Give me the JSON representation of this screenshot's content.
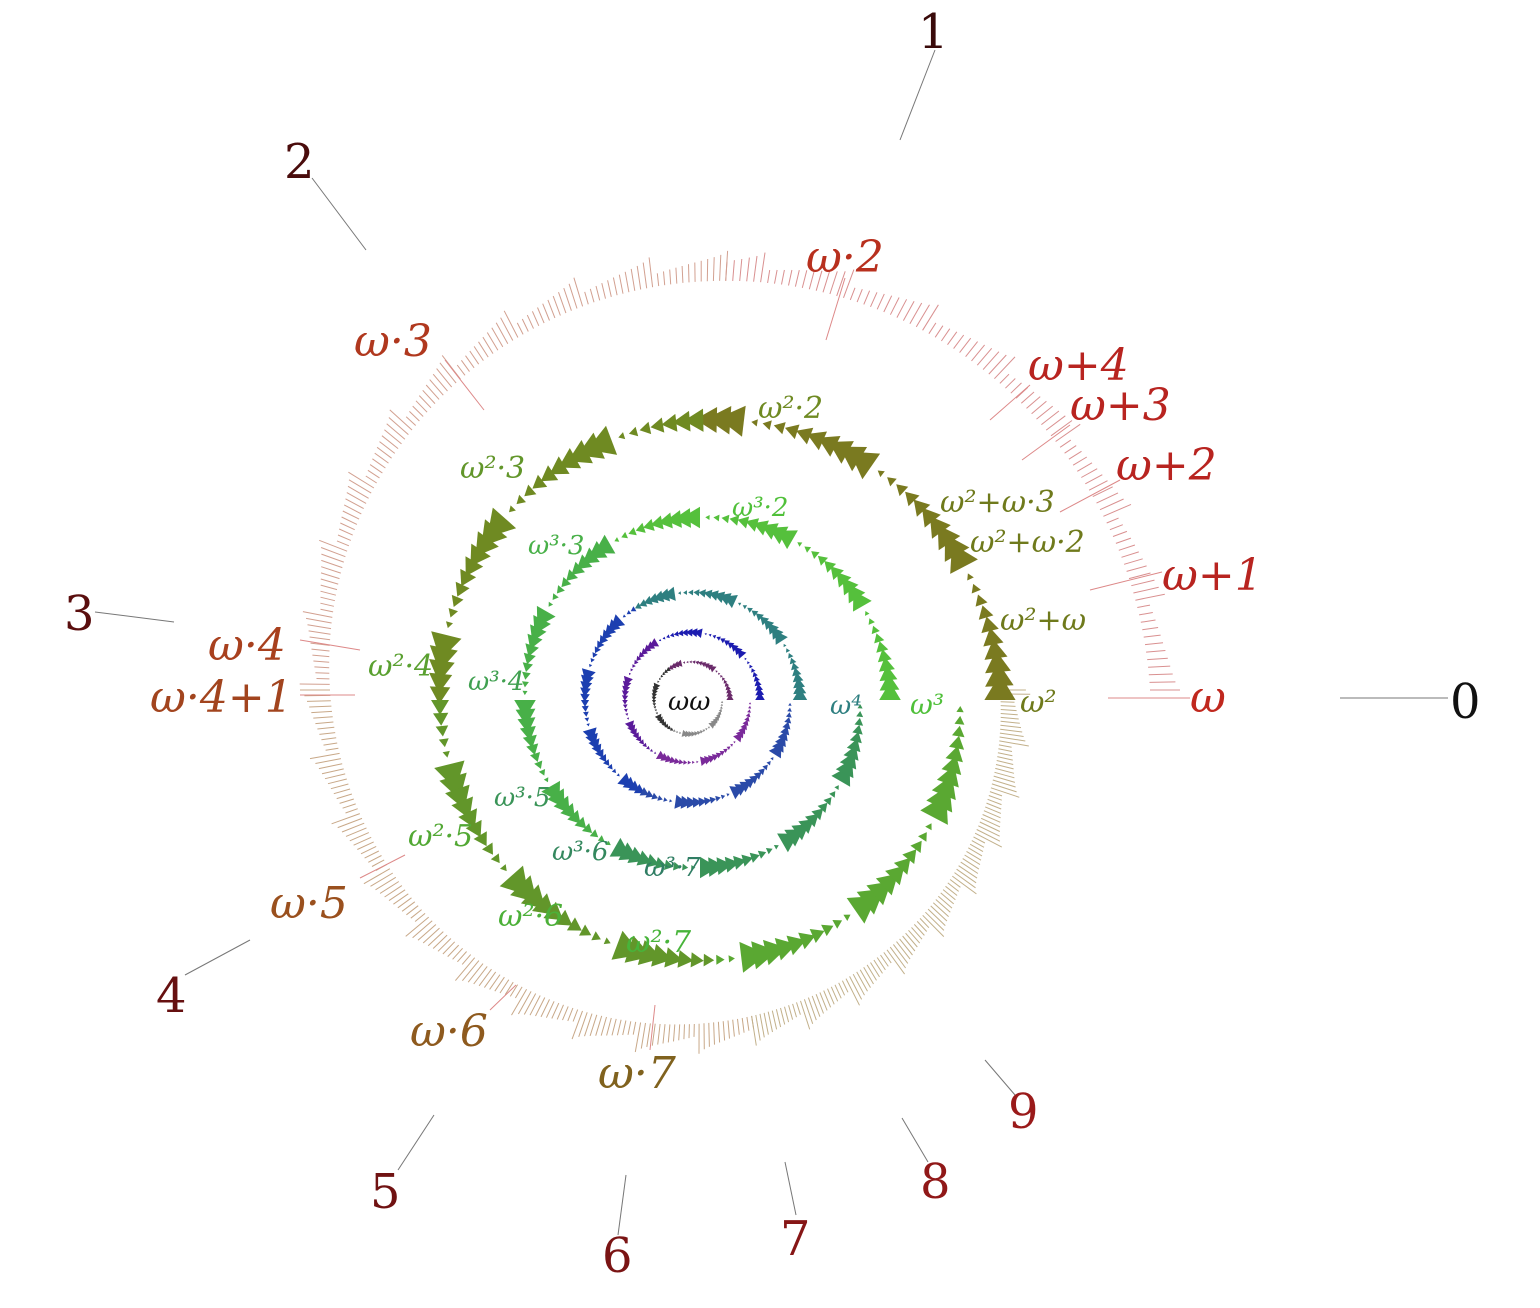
{
  "diagram": {
    "title": "",
    "numerals": [
      "0",
      "1",
      "2",
      "3",
      "4",
      "5",
      "6",
      "7",
      "8",
      "9"
    ],
    "omega_multiples": [
      "ω",
      "ω+1",
      "ω+2",
      "ω+3",
      "ω+4",
      "ω·2",
      "ω·3",
      "ω·4",
      "ω·4+1",
      "ω·5",
      "ω·6",
      "ω·7"
    ],
    "omega_squared": [
      "ω²",
      "ω²+ω",
      "ω²+ω·2",
      "ω²+ω·3",
      "ω²·2",
      "ω²·3",
      "ω²·4",
      "ω²·5",
      "ω²·6",
      "ω²·7"
    ],
    "omega_cubed": [
      "ω³",
      "ω³·2",
      "ω³·3",
      "ω³·4",
      "ω³·5",
      "ω³·6",
      "ω³·7"
    ],
    "higher": [
      "ω⁴",
      "ωω"
    ],
    "colors": {
      "finite": "#6b1010",
      "omega": "#b8281e",
      "omega_late": "#8a5a1c",
      "omega_sq": "#7a8a2a",
      "omega_sq_green": "#5aa832",
      "omega_cu": "#55c03c",
      "omega_4": "#2e7f80",
      "spiral_blue": "#1c3fb0",
      "spiral_violet": "#5a1a9a"
    }
  }
}
